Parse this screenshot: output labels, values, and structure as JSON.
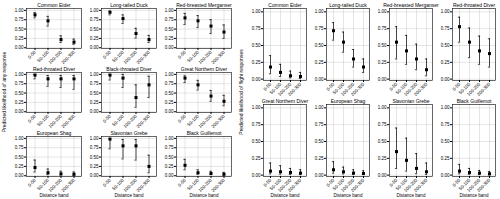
{
  "chart_data": [
    {
      "type": "errorbar",
      "ylabel": "Predicted likelihood of any response",
      "xlabel": "Distance band",
      "categories": [
        "0-50",
        "50-100",
        "100-200",
        "200-300"
      ],
      "color": "black",
      "marker": "square",
      "grid": true,
      "ylim": [
        -0.02,
        1.05
      ],
      "yticks": [
        {
          "value": 0,
          "label": "0.00"
        },
        0.25,
        {
          "value": 0.5,
          "label": "0.50"
        },
        0.75,
        {
          "value": 1,
          "label": "1.00"
        }
      ],
      "series": [
        {
          "name": "Common Eider",
          "values": [
            0.88,
            0.72,
            0.22,
            0.15
          ],
          "lower": [
            0.8,
            0.58,
            0.14,
            0.09
          ],
          "upper": [
            0.94,
            0.84,
            0.32,
            0.23
          ]
        },
        {
          "name": "Long-tailed Duck",
          "values": [
            0.95,
            0.78,
            0.38,
            0.22
          ],
          "lower": [
            0.88,
            0.65,
            0.26,
            0.14
          ],
          "upper": [
            0.98,
            0.88,
            0.52,
            0.33
          ]
        },
        {
          "name": "Red-breasted Merganser",
          "values": [
            0.8,
            0.72,
            0.58,
            0.42
          ],
          "lower": [
            0.62,
            0.54,
            0.38,
            0.25
          ],
          "upper": [
            0.92,
            0.86,
            0.75,
            0.61
          ]
        },
        {
          "name": "Red-throated Diver",
          "values": [
            0.98,
            0.88,
            0.88,
            0.88
          ],
          "lower": [
            0.88,
            0.68,
            0.65,
            0.6
          ],
          "upper": [
            1.0,
            0.97,
            0.97,
            0.97
          ]
        },
        {
          "name": "Black-throated Diver",
          "values": [
            0.98,
            0.9,
            0.38,
            0.72
          ],
          "lower": [
            0.85,
            0.65,
            0.12,
            0.38
          ],
          "upper": [
            1.0,
            1.0,
            0.72,
            0.95
          ]
        },
        {
          "name": "Great Northern Diver",
          "values": [
            0.9,
            0.72,
            0.42,
            0.28
          ],
          "lower": [
            0.78,
            0.58,
            0.28,
            0.16
          ],
          "upper": [
            0.96,
            0.84,
            0.57,
            0.44
          ]
        },
        {
          "name": "European Shag",
          "values": [
            0.22,
            0.08,
            0.05,
            0.04
          ],
          "lower": [
            0.1,
            0.03,
            0.02,
            0.015
          ],
          "upper": [
            0.42,
            0.18,
            0.12,
            0.1
          ]
        },
        {
          "name": "Slavonian Grebe",
          "values": [
            0.98,
            0.8,
            0.8,
            0.25
          ],
          "lower": [
            0.72,
            0.45,
            0.42,
            0.08
          ],
          "upper": [
            1.0,
            0.97,
            0.97,
            0.55
          ]
        },
        {
          "name": "Black Guillemot",
          "values": [
            0.28,
            0.08,
            0.06,
            0.04
          ],
          "lower": [
            0.16,
            0.04,
            0.03,
            0.018
          ],
          "upper": [
            0.44,
            0.16,
            0.12,
            0.09
          ]
        }
      ]
    },
    {
      "type": "errorbar",
      "ylabel": "Predicted likelihood of flight responses",
      "xlabel": "Distance band",
      "categories": [
        "0-50",
        "50-100",
        "100-200",
        "200-300"
      ],
      "color": "black",
      "marker": "square",
      "grid": true,
      "ylim": [
        -0.02,
        1.05
      ],
      "yticks": [
        {
          "value": 0,
          "label": "0.00"
        },
        0.25,
        {
          "value": 0.5,
          "label": "0.50"
        },
        0.75,
        {
          "value": 1,
          "label": "1.00"
        }
      ],
      "series": [
        {
          "name": "Common Eider",
          "values": [
            0.18,
            0.1,
            0.05,
            0.04
          ],
          "lower": [
            0.08,
            0.04,
            0.02,
            0.01
          ],
          "upper": [
            0.35,
            0.22,
            0.12,
            0.1
          ]
        },
        {
          "name": "Long-tailed Duck",
          "values": [
            0.72,
            0.55,
            0.3,
            0.18
          ],
          "lower": [
            0.58,
            0.4,
            0.18,
            0.1
          ],
          "upper": [
            0.84,
            0.7,
            0.44,
            0.3
          ]
        },
        {
          "name": "Red-breasted Merganser",
          "values": [
            0.55,
            0.42,
            0.3,
            0.14
          ],
          "lower": [
            0.3,
            0.22,
            0.14,
            0.05
          ],
          "upper": [
            0.78,
            0.65,
            0.52,
            0.3
          ]
        },
        {
          "name": "Red-throated Diver",
          "values": [
            0.78,
            0.55,
            0.42,
            0.38
          ],
          "lower": [
            0.55,
            0.32,
            0.22,
            0.18
          ],
          "upper": [
            0.92,
            0.76,
            0.64,
            0.6
          ]
        },
        {
          "name": "Great Northern Diver",
          "values": [
            0.06,
            0.05,
            0.04,
            0.03
          ],
          "lower": [
            0.02,
            0.015,
            0.01,
            0.008
          ],
          "upper": [
            0.18,
            0.14,
            0.1,
            0.08
          ]
        },
        {
          "name": "European Shag",
          "values": [
            0.08,
            0.05,
            0.03,
            0.025
          ],
          "lower": [
            0.03,
            0.018,
            0.01,
            0.008
          ],
          "upper": [
            0.2,
            0.12,
            0.08,
            0.065
          ]
        },
        {
          "name": "Slavonian Grebe",
          "values": [
            0.35,
            0.22,
            0.1,
            0.05
          ],
          "lower": [
            0.1,
            0.06,
            0.02,
            0.01
          ],
          "upper": [
            0.7,
            0.55,
            0.32,
            0.18
          ]
        },
        {
          "name": "Black Guillemot",
          "values": [
            0.06,
            0.04,
            0.03,
            0.02
          ],
          "lower": [
            0.02,
            0.01,
            0.008,
            0.005
          ],
          "upper": [
            0.16,
            0.1,
            0.07,
            0.055
          ]
        }
      ]
    }
  ]
}
